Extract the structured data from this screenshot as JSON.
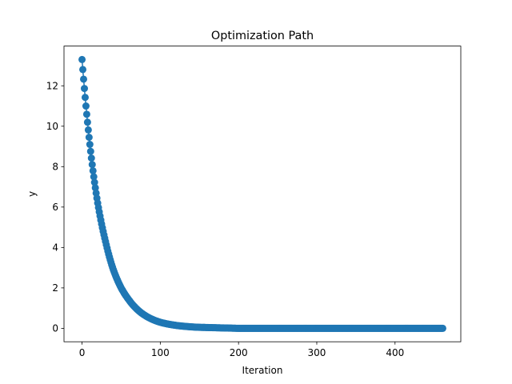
{
  "chart_data": {
    "type": "line",
    "title": "Optimization Path",
    "xlabel": "Iteration",
    "ylabel": "y",
    "xlim": [
      -23.05,
      484.05
    ],
    "ylim": [
      -0.665,
      13.965
    ],
    "xticks": [
      0,
      100,
      200,
      300,
      400
    ],
    "yticks": [
      0,
      2,
      4,
      6,
      8,
      10,
      12
    ],
    "grid": false,
    "legend": "none",
    "series": [
      {
        "marker": "circle",
        "color": "#1f77b4",
        "x_start": 0,
        "x_end": 461,
        "x_step": 1,
        "sampled_points": [
          {
            "x": 0,
            "y": 13.3
          },
          {
            "x": 5,
            "y": 11.0
          },
          {
            "x": 10,
            "y": 9.1
          },
          {
            "x": 15,
            "y": 7.5
          },
          {
            "x": 20,
            "y": 6.2
          },
          {
            "x": 30,
            "y": 4.3
          },
          {
            "x": 40,
            "y": 2.9
          },
          {
            "x": 50,
            "y": 2.0
          },
          {
            "x": 60,
            "y": 1.4
          },
          {
            "x": 80,
            "y": 0.65
          },
          {
            "x": 100,
            "y": 0.3
          },
          {
            "x": 150,
            "y": 0.05
          },
          {
            "x": 200,
            "y": 0.0
          },
          {
            "x": 300,
            "y": 0.0
          },
          {
            "x": 400,
            "y": 0.0
          },
          {
            "x": 461,
            "y": 0.0
          }
        ]
      }
    ]
  }
}
